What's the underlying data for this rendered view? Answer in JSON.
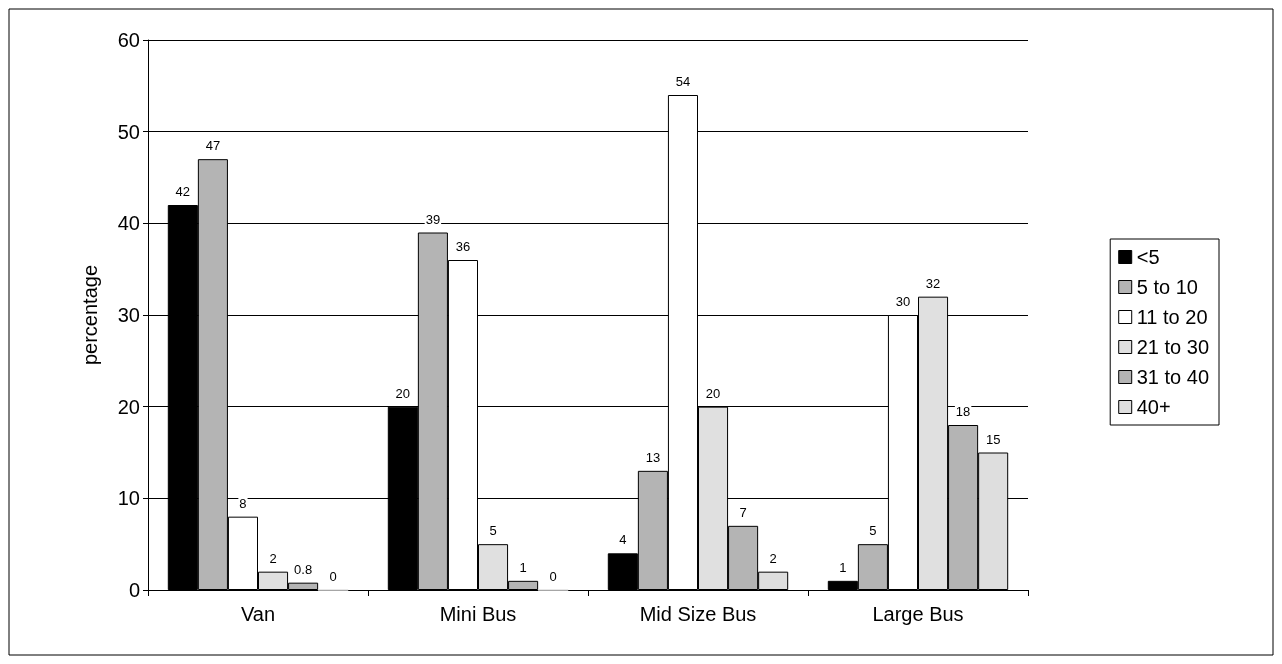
{
  "chart_data": {
    "type": "bar",
    "ylabel": "percentage",
    "categories": [
      "Van",
      "Mini Bus",
      "Mid Size Bus",
      "Large Bus"
    ],
    "series": [
      {
        "name": "<5",
        "color": "#000000",
        "values": [
          42,
          20,
          4,
          1
        ]
      },
      {
        "name": "5 to 10",
        "color": "#b4b4b4",
        "values": [
          47,
          39,
          13,
          5
        ]
      },
      {
        "name": "11 to 20",
        "color": "#ffffff",
        "values": [
          8,
          36,
          54,
          30
        ]
      },
      {
        "name": "21 to 30",
        "color": "#e0e0e0",
        "values": [
          2,
          5,
          20,
          32
        ]
      },
      {
        "name": "31 to 40",
        "color": "#b4b4b4",
        "values": [
          0.8,
          1,
          7,
          18
        ]
      },
      {
        "name": "40+",
        "color": "#dedede",
        "values": [
          0,
          0,
          2,
          15
        ]
      }
    ],
    "ylim": [
      0,
      60
    ],
    "yticks": [
      0,
      10,
      20,
      30,
      40,
      50,
      60
    ],
    "grid": "y",
    "legend": "right",
    "data_labels": true
  }
}
